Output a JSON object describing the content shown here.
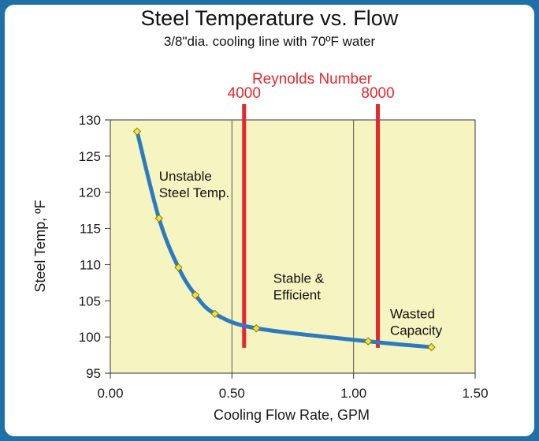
{
  "colors": {
    "border": "#1f6fa8",
    "background": "#ffffff",
    "plot_area": "#f6f4c0",
    "curve": "#2b7bbf",
    "marker_fill": "#f2e33a",
    "marker_stroke": "#8a7a10",
    "reynolds": "#e8262b",
    "grid": "#555555"
  },
  "chart_data": {
    "type": "line",
    "title": "Steel Temperature vs. Flow",
    "subtitle": "3/8\"dia. cooling line with 70ºF water",
    "xlabel": "Cooling Flow Rate, GPM",
    "ylabel": "Steel Temp, ºF",
    "xlim": [
      0,
      1.5
    ],
    "ylim": [
      95,
      130
    ],
    "x_ticks": [
      "0.00",
      "0.50",
      "1.00",
      "1.50"
    ],
    "x_tick_values": [
      0,
      0.5,
      1.0,
      1.5
    ],
    "y_ticks": [
      "95",
      "100",
      "105",
      "110",
      "115",
      "120",
      "125",
      "130"
    ],
    "y_tick_values": [
      95,
      100,
      105,
      110,
      115,
      120,
      125,
      130
    ],
    "grid": "vertical lines at x ticks",
    "series": [
      {
        "x": [
          0.11,
          0.2,
          0.28,
          0.35,
          0.43,
          0.6,
          1.06,
          1.32
        ],
        "y": [
          128.4,
          116.4,
          109.6,
          105.8,
          103.2,
          101.2,
          99.4,
          98.6
        ]
      }
    ],
    "reynolds": {
      "label": "Reynolds Number",
      "lines": [
        {
          "label": "4000",
          "x": 0.55
        },
        {
          "label": "8000",
          "x": 1.1
        }
      ],
      "y_range": [
        98.5,
        132.2
      ]
    },
    "annotations": [
      {
        "lines": [
          "Unstable",
          "Steel Temp."
        ],
        "x": 0.2,
        "y": 121.6
      },
      {
        "lines": [
          "Stable &",
          "Efficient"
        ],
        "x": 0.67,
        "y": 107.5
      },
      {
        "lines": [
          "Wasted",
          "Capacity"
        ],
        "x": 1.15,
        "y": 102.6
      }
    ]
  }
}
